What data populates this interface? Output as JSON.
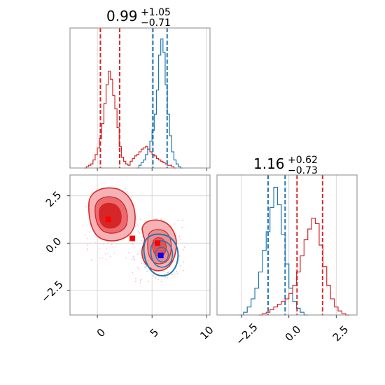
{
  "chart_data": [
    {
      "panel": "marginal-x",
      "type": "histogram",
      "title": {
        "main": "0.99",
        "sup": "+1.05",
        "sub": "−0.71"
      },
      "xlim": [
        -2.5,
        10.3
      ],
      "grid": true,
      "series": [
        {
          "color": "#d62728",
          "bins": [
            [
              -1.2,
              0.0
            ],
            [
              -1.0,
              0.01
            ],
            [
              -0.8,
              0.02
            ],
            [
              -0.6,
              0.03
            ],
            [
              -0.4,
              0.06
            ],
            [
              -0.2,
              0.1
            ],
            [
              0.0,
              0.15
            ],
            [
              0.2,
              0.22
            ],
            [
              0.4,
              0.33
            ],
            [
              0.6,
              0.48
            ],
            [
              0.8,
              0.62
            ],
            [
              1.0,
              0.72
            ],
            [
              1.2,
              0.66
            ],
            [
              1.4,
              0.54
            ],
            [
              1.6,
              0.44
            ],
            [
              1.8,
              0.3
            ],
            [
              2.0,
              0.16
            ],
            [
              2.2,
              0.08
            ],
            [
              2.4,
              0.05
            ],
            [
              2.6,
              0.03
            ],
            [
              2.8,
              0.02
            ],
            [
              3.0,
              0.05
            ],
            [
              3.2,
              0.07
            ],
            [
              3.4,
              0.09
            ],
            [
              3.6,
              0.1
            ],
            [
              3.8,
              0.12
            ],
            [
              4.0,
              0.14
            ],
            [
              4.2,
              0.15
            ],
            [
              4.4,
              0.16
            ],
            [
              4.6,
              0.14
            ],
            [
              4.8,
              0.12
            ],
            [
              5.0,
              0.1
            ],
            [
              5.2,
              0.09
            ],
            [
              5.4,
              0.07
            ],
            [
              5.6,
              0.06
            ],
            [
              5.8,
              0.05
            ],
            [
              6.0,
              0.04
            ],
            [
              6.2,
              0.03
            ],
            [
              6.4,
              0.02
            ],
            [
              6.6,
              0.02
            ],
            [
              6.8,
              0.01
            ],
            [
              7.0,
              0.0
            ]
          ],
          "quantiles": [
            0.28,
            2.04
          ]
        },
        {
          "color": "#1f77b4",
          "bins": [
            [
              3.6,
              0.0
            ],
            [
              3.8,
              0.02
            ],
            [
              4.0,
              0.04
            ],
            [
              4.2,
              0.06
            ],
            [
              4.4,
              0.1
            ],
            [
              4.6,
              0.14
            ],
            [
              4.8,
              0.2
            ],
            [
              5.0,
              0.28
            ],
            [
              5.2,
              0.4
            ],
            [
              5.4,
              0.58
            ],
            [
              5.6,
              0.84
            ],
            [
              5.8,
              0.96
            ],
            [
              6.0,
              0.86
            ],
            [
              6.2,
              0.62
            ],
            [
              6.4,
              0.4
            ],
            [
              6.6,
              0.24
            ],
            [
              6.8,
              0.12
            ],
            [
              7.0,
              0.06
            ],
            [
              7.2,
              0.03
            ],
            [
              7.4,
              0.01
            ],
            [
              7.6,
              0.0
            ]
          ],
          "quantiles": [
            5.08,
            6.38
          ]
        }
      ]
    },
    {
      "panel": "joint",
      "type": "contour",
      "xlim": [
        -2.5,
        10.3
      ],
      "ylim": [
        -3.8,
        3.6
      ],
      "xticks": [
        "0",
        "5",
        "10"
      ],
      "yticks": [
        "−2.5",
        "0.0",
        "2.5"
      ],
      "grid": true,
      "markers": [
        {
          "color": "#ff0000",
          "x": 1.0,
          "y": 1.25
        },
        {
          "color": "#ff0000",
          "x": 3.2,
          "y": 0.25
        },
        {
          "color": "#ff0000",
          "x": 5.5,
          "y": 0.0
        },
        {
          "color": "#0000ff",
          "x": 5.8,
          "y": -0.65
        }
      ]
    },
    {
      "panel": "marginal-y",
      "type": "histogram",
      "title": {
        "main": "1.16",
        "sup": "+0.62",
        "sub": "−0.73"
      },
      "xlim": [
        -3.8,
        3.6
      ],
      "xticks": [
        "−2.5",
        "0.0",
        "2.5"
      ],
      "grid": true,
      "series": [
        {
          "color": "#1f77b4",
          "bins": [
            [
              -2.6,
              0.0
            ],
            [
              -2.4,
              0.02
            ],
            [
              -2.2,
              0.06
            ],
            [
              -2.0,
              0.12
            ],
            [
              -1.8,
              0.2
            ],
            [
              -1.6,
              0.32
            ],
            [
              -1.4,
              0.48
            ],
            [
              -1.2,
              0.62
            ],
            [
              -1.0,
              0.8
            ],
            [
              -0.8,
              0.95
            ],
            [
              -0.6,
              0.82
            ],
            [
              -0.4,
              0.6
            ],
            [
              -0.2,
              0.38
            ],
            [
              0.0,
              0.2
            ],
            [
              0.2,
              0.1
            ],
            [
              0.4,
              0.05
            ],
            [
              0.6,
              0.02
            ],
            [
              0.8,
              0.0
            ]
          ],
          "quantiles": [
            -1.1,
            -0.2
          ]
        },
        {
          "color": "#d62728",
          "bins": [
            [
              -1.6,
              0.0
            ],
            [
              -1.4,
              0.01
            ],
            [
              -1.2,
              0.02
            ],
            [
              -1.0,
              0.04
            ],
            [
              -0.8,
              0.06
            ],
            [
              -0.6,
              0.08
            ],
            [
              -0.4,
              0.1
            ],
            [
              -0.2,
              0.12
            ],
            [
              0.0,
              0.16
            ],
            [
              0.2,
              0.22
            ],
            [
              0.4,
              0.32
            ],
            [
              0.6,
              0.44
            ],
            [
              0.8,
              0.56
            ],
            [
              1.0,
              0.64
            ],
            [
              1.2,
              0.72
            ],
            [
              1.4,
              0.68
            ],
            [
              1.6,
              0.52
            ],
            [
              1.8,
              0.36
            ],
            [
              2.0,
              0.22
            ],
            [
              2.2,
              0.12
            ],
            [
              2.4,
              0.06
            ],
            [
              2.6,
              0.03
            ],
            [
              2.8,
              0.01
            ],
            [
              3.0,
              0.0
            ]
          ],
          "quantiles": [
            0.43,
            1.78
          ]
        }
      ]
    }
  ]
}
